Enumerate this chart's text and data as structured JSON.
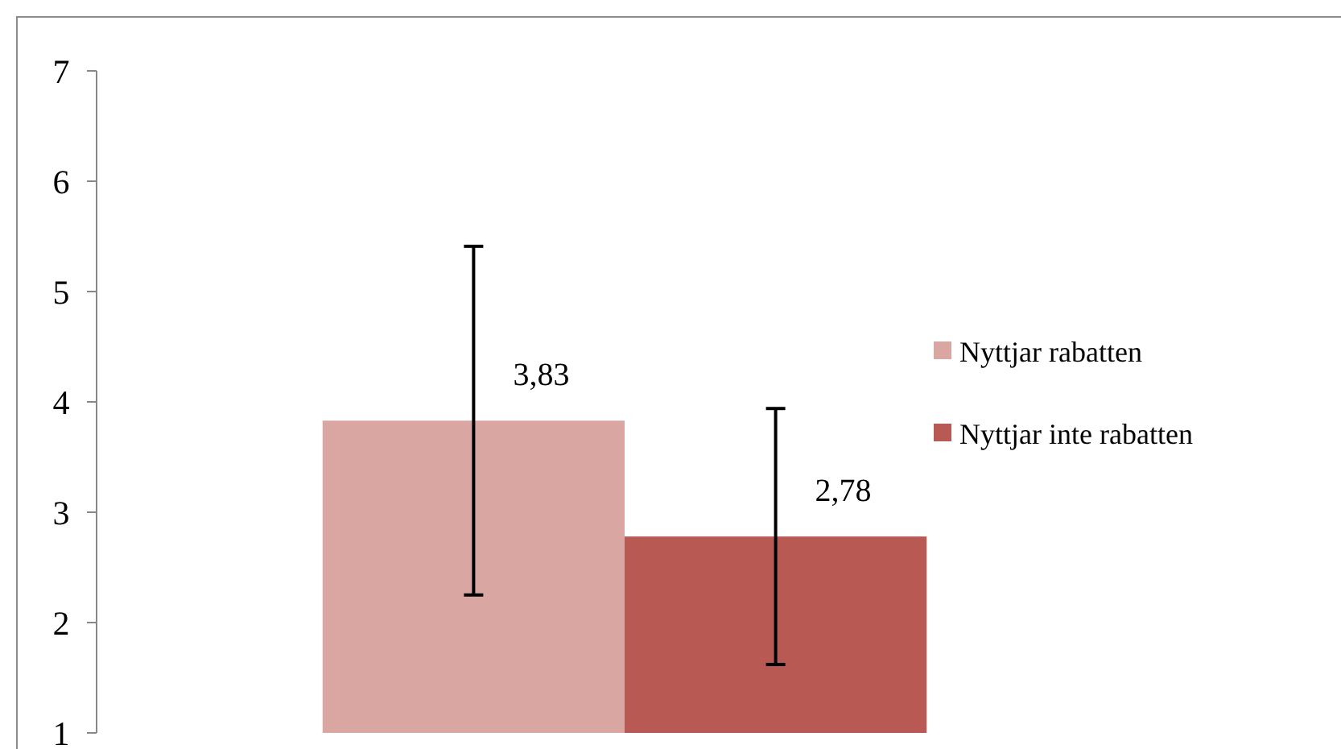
{
  "chart_data": {
    "type": "bar",
    "categories": [
      null
    ],
    "series": [
      {
        "name": "Nyttjar rabatten",
        "color": "#d9a6a2",
        "values": [
          3.83
        ],
        "errors": [
          1.58
        ],
        "value_labels": [
          "3,83"
        ]
      },
      {
        "name": "Nyttjar inte rabatten",
        "color": "#b85a53",
        "values": [
          2.78
        ],
        "errors": [
          1.16
        ],
        "value_labels": [
          "2,78"
        ]
      }
    ],
    "ylim": [
      1,
      7
    ],
    "yticks": [
      1,
      2,
      3,
      4,
      5,
      6,
      7
    ],
    "legend": "right"
  }
}
